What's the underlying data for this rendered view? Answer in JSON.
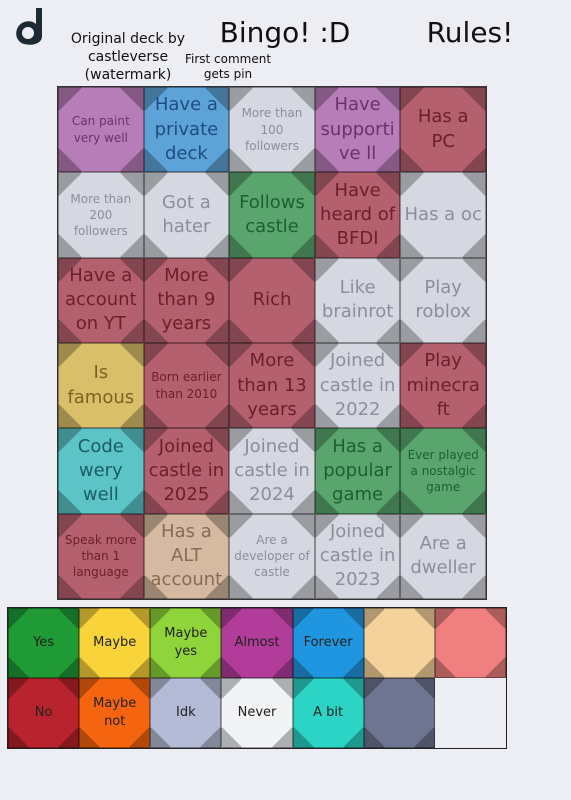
{
  "header": {
    "credit": "Original deck by castleverse (watermark)",
    "title": "Bingo! :D",
    "note": "First comment gets pin",
    "rules": "Rules!"
  },
  "grid": {
    "cells": [
      {
        "label": "Can paint very well",
        "color": "#b77db8",
        "text_color": "#6e2f70"
      },
      {
        "label": "Have a private deck",
        "color": "#5ea3d8",
        "text_color": "#1d4d80"
      },
      {
        "label": "More than 100 followers",
        "color": "#d5d8e0",
        "text_color": "#8a8f9c"
      },
      {
        "label": "Have supportive ll",
        "color": "#b77db8",
        "text_color": "#6e2f70"
      },
      {
        "label": "Has a PC",
        "color": "#b5606f",
        "text_color": "#6b1f2a"
      },
      {
        "label": "More than 200 followers",
        "color": "#d5d8e0",
        "text_color": "#8a8f9c"
      },
      {
        "label": "Got a hater",
        "color": "#d5d8e0",
        "text_color": "#8a8f9c"
      },
      {
        "label": "Follows castle",
        "color": "#5aa56e",
        "text_color": "#1f5e33"
      },
      {
        "label": "Have heard of BFDI",
        "color": "#b5606f",
        "text_color": "#6b1f2a"
      },
      {
        "label": "Has a oc",
        "color": "#d5d8e0",
        "text_color": "#8a8f9c"
      },
      {
        "label": "Have a account on YT",
        "color": "#b5606f",
        "text_color": "#6b1f2a"
      },
      {
        "label": "More than 9 years",
        "color": "#b5606f",
        "text_color": "#6b1f2a"
      },
      {
        "label": "Rich",
        "color": "#b5606f",
        "text_color": "#6b1f2a"
      },
      {
        "label": "Like brainrot",
        "color": "#d5d8e0",
        "text_color": "#8a8f9c"
      },
      {
        "label": "Play roblox",
        "color": "#d5d8e0",
        "text_color": "#8a8f9c"
      },
      {
        "label": "Is famous",
        "color": "#d9bf6a",
        "text_color": "#7a6320"
      },
      {
        "label": "Born earlier than 2010",
        "color": "#b5606f",
        "text_color": "#6b1f2a"
      },
      {
        "label": "More than 13 years",
        "color": "#b5606f",
        "text_color": "#6b1f2a"
      },
      {
        "label": "Joined castle in 2022",
        "color": "#d5d8e0",
        "text_color": "#8a8f9c"
      },
      {
        "label": "Play minecraft",
        "color": "#b5606f",
        "text_color": "#6b1f2a"
      },
      {
        "label": "Code wery well",
        "color": "#5cc3c6",
        "text_color": "#1b5e62"
      },
      {
        "label": "Joined castle in 2025",
        "color": "#b5606f",
        "text_color": "#6b1f2a"
      },
      {
        "label": "Joined castle in 2024",
        "color": "#d5d8e0",
        "text_color": "#8a8f9c"
      },
      {
        "label": "Has a popular game",
        "color": "#5aa56e",
        "text_color": "#1f5e33"
      },
      {
        "label": "Ever played a nostalgic game",
        "color": "#5aa56e",
        "text_color": "#1f5e33"
      },
      {
        "label": "Speak more than 1 language",
        "color": "#b5606f",
        "text_color": "#6b1f2a"
      },
      {
        "label": "Has a ALT account",
        "color": "#d5b9a0",
        "text_color": "#8a6a55"
      },
      {
        "label": "Are a developer of castle",
        "color": "#d5d8e0",
        "text_color": "#8a8f9c"
      },
      {
        "label": "Joined castle in 2023",
        "color": "#d5d8e0",
        "text_color": "#8a8f9c"
      },
      {
        "label": "Are a dweller",
        "color": "#d5d8e0",
        "text_color": "#8a8f9c"
      }
    ]
  },
  "legend": {
    "items": [
      {
        "label": "Yes",
        "color": "#1f9a34"
      },
      {
        "label": "Maybe",
        "color": "#f9d33a"
      },
      {
        "label": "Maybe yes",
        "color": "#8fd43a"
      },
      {
        "label": "Almost",
        "color": "#b13c9a"
      },
      {
        "label": "Forever",
        "color": "#2196e0"
      },
      {
        "color": "#f5d29c"
      },
      {
        "color": "#f08080"
      },
      {
        "label": "No",
        "color": "#b8232d"
      },
      {
        "label": "Maybe not",
        "color": "#f5650f"
      },
      {
        "label": "Idk",
        "color": "#b4bbd6"
      },
      {
        "label": "Never",
        "color": "#f1f3f5"
      },
      {
        "label": "A bit",
        "color": "#2bd4c4"
      },
      {
        "color": "#6d7590"
      }
    ]
  }
}
